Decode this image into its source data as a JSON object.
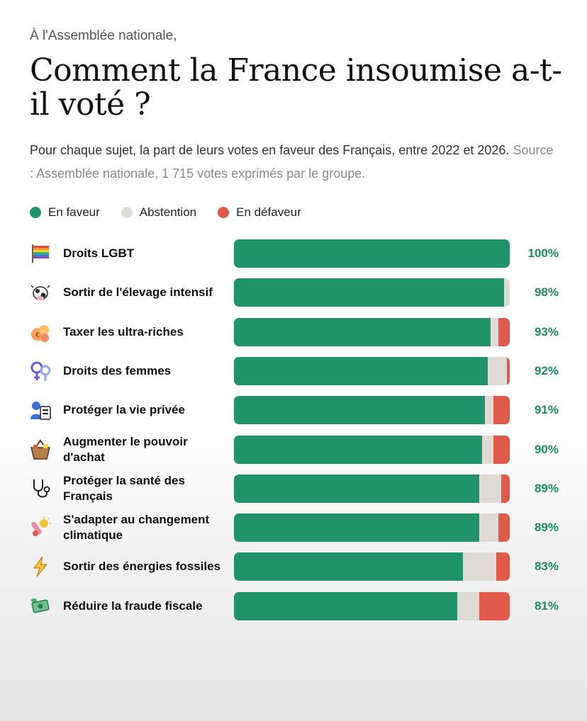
{
  "header": {
    "kicker": "À l'Assemblée nationale,",
    "title": "Comment la France insoumise a-t-il voté ?",
    "subtitle": "Pour chaque sujet, la part de leurs votes en faveur des Français, entre 2022 et 2026.",
    "source": "Source : Assemblée nationale, 1 715 votes exprimés par le groupe."
  },
  "colors": {
    "favor": "#20936a",
    "abstention": "#dddbd3",
    "against": "#e05a4b"
  },
  "legend": [
    {
      "label": "En faveur",
      "color_key": "favor"
    },
    {
      "label": "Abstention",
      "color_key": "abstention"
    },
    {
      "label": "En défaveur",
      "color_key": "against"
    }
  ],
  "chart_data": {
    "type": "bar",
    "orientation": "horizontal",
    "stacked": true,
    "value_unit": "%",
    "xlim": [
      0,
      100
    ],
    "legend_position": "top-left",
    "grid": false,
    "series": [
      {
        "name": "En faveur",
        "values": [
          100,
          98,
          93,
          92,
          91,
          90,
          89,
          89,
          83,
          81
        ]
      },
      {
        "name": "Abstention",
        "values": [
          0,
          2,
          3,
          7,
          3,
          4,
          8,
          7,
          12,
          8
        ]
      },
      {
        "name": "En défaveur",
        "values": [
          0,
          0,
          4,
          1,
          6,
          6,
          3,
          4,
          5,
          11
        ]
      }
    ],
    "categories": [
      {
        "label": "Droits LGBT",
        "icon": "rainbow-flag-icon",
        "value_label": "100%"
      },
      {
        "label": "Sortir de l'élevage intensif",
        "icon": "cow-icon",
        "value_label": "98%"
      },
      {
        "label": "Taxer les ultra-riches",
        "icon": "money-bag-icon",
        "value_label": "93%"
      },
      {
        "label": "Droits des femmes",
        "icon": "venus-symbol-icon",
        "value_label": "92%"
      },
      {
        "label": "Protéger la vie privée",
        "icon": "person-with-id-card-icon",
        "value_label": "91%"
      },
      {
        "label": "Augmenter le pouvoir d'achat",
        "icon": "shopping-basket-icon",
        "value_label": "90%"
      },
      {
        "label": "Protéger la santé des Français",
        "icon": "stethoscope-icon",
        "value_label": "89%"
      },
      {
        "label": "S'adapter au changement climatique",
        "icon": "sun-thermometer-icon",
        "value_label": "89%"
      },
      {
        "label": "Sortir des énergies fossiles",
        "icon": "lightning-bolt-icon",
        "value_label": "83%"
      },
      {
        "label": "Réduire la fraude fiscale",
        "icon": "banknote-leaf-icon",
        "value_label": "81%"
      }
    ]
  }
}
